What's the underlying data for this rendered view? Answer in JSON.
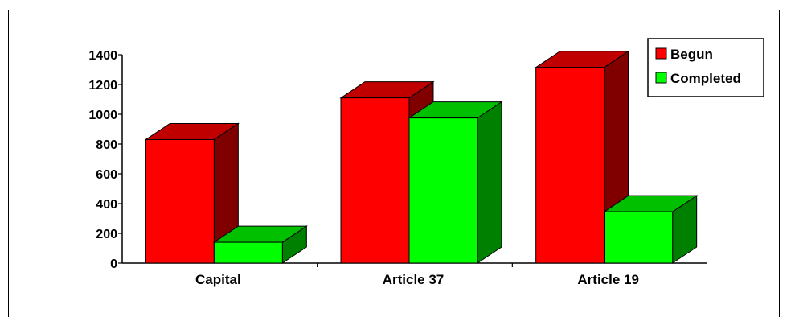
{
  "chart_data": {
    "type": "bar",
    "categories": [
      "Capital",
      "Article 37",
      "Article 19"
    ],
    "series": [
      {
        "name": "Begun",
        "values": [
          830,
          1110,
          1315
        ],
        "color": "#ff0000",
        "side_color": "#800000",
        "top_color": "#c00000"
      },
      {
        "name": "Completed",
        "values": [
          140,
          975,
          345
        ],
        "color": "#00ff00",
        "side_color": "#008000",
        "top_color": "#00c000"
      }
    ],
    "y_ticks": [
      "0",
      "200",
      "400",
      "600",
      "800",
      "1000",
      "1200",
      "1400"
    ],
    "ylim": [
      0,
      1400
    ],
    "legend_position": "top-right",
    "grid": false,
    "bar_style": "3d"
  }
}
